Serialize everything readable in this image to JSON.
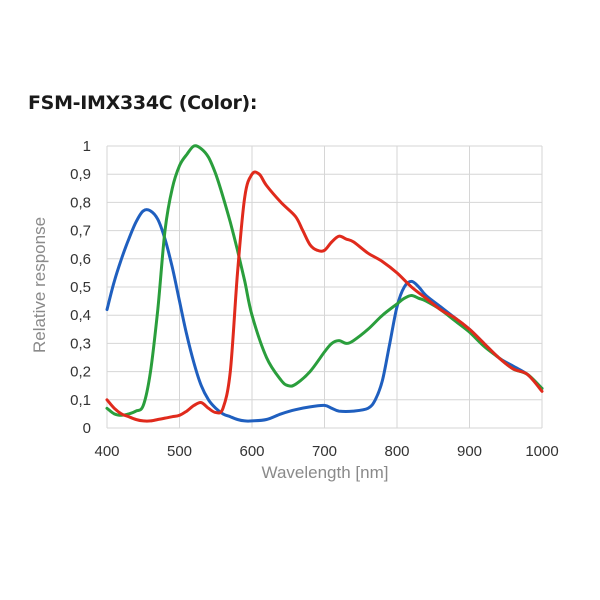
{
  "chart_data": {
    "type": "line",
    "title": "FSM-IMX334C (Color):",
    "xlabel": "Wavelength [nm]",
    "ylabel": "Relative response",
    "xlim": [
      400,
      1000
    ],
    "ylim": [
      0,
      1
    ],
    "x_ticks": [
      400,
      500,
      600,
      700,
      800,
      900,
      1000
    ],
    "x_tick_labels": [
      "400",
      "500",
      "600",
      "700",
      "800",
      "900",
      "1000"
    ],
    "y_ticks": [
      0,
      0.1,
      0.2,
      0.3,
      0.4,
      0.5,
      0.6,
      0.7,
      0.8,
      0.9,
      1
    ],
    "y_tick_labels": [
      "0",
      "0,1",
      "0,2",
      "0,3",
      "0,4",
      "0,5",
      "0,6",
      "0,7",
      "0,8",
      "0,9",
      "1"
    ],
    "grid": true,
    "series": [
      {
        "color": "#1f5fbf",
        "x": [
          400,
          410,
          420,
          430,
          440,
          450,
          460,
          470,
          480,
          490,
          500,
          510,
          520,
          530,
          540,
          550,
          560,
          570,
          580,
          590,
          600,
          620,
          640,
          660,
          680,
          700,
          710,
          720,
          740,
          760,
          770,
          780,
          790,
          800,
          810,
          820,
          830,
          840,
          860,
          880,
          900,
          920,
          940,
          960,
          980,
          1000
        ],
        "y": [
          0.42,
          0.52,
          0.6,
          0.67,
          0.73,
          0.77,
          0.77,
          0.74,
          0.67,
          0.57,
          0.45,
          0.33,
          0.23,
          0.15,
          0.1,
          0.07,
          0.05,
          0.04,
          0.03,
          0.025,
          0.025,
          0.03,
          0.05,
          0.065,
          0.075,
          0.08,
          0.07,
          0.06,
          0.06,
          0.07,
          0.1,
          0.17,
          0.3,
          0.43,
          0.5,
          0.52,
          0.5,
          0.47,
          0.43,
          0.39,
          0.35,
          0.3,
          0.25,
          0.22,
          0.19,
          0.14
        ]
      },
      {
        "color": "#2a9e3c",
        "x": [
          400,
          410,
          420,
          430,
          440,
          450,
          460,
          470,
          480,
          490,
          500,
          510,
          520,
          530,
          540,
          550,
          560,
          570,
          580,
          590,
          600,
          620,
          640,
          650,
          660,
          680,
          700,
          710,
          720,
          730,
          740,
          760,
          780,
          800,
          810,
          820,
          830,
          840,
          860,
          880,
          900,
          920,
          940,
          960,
          980,
          1000
        ],
        "y": [
          0.07,
          0.05,
          0.045,
          0.05,
          0.06,
          0.08,
          0.2,
          0.42,
          0.7,
          0.85,
          0.93,
          0.97,
          1.0,
          0.99,
          0.96,
          0.9,
          0.82,
          0.73,
          0.63,
          0.52,
          0.4,
          0.25,
          0.17,
          0.15,
          0.155,
          0.2,
          0.27,
          0.3,
          0.31,
          0.3,
          0.31,
          0.35,
          0.4,
          0.44,
          0.46,
          0.47,
          0.46,
          0.45,
          0.42,
          0.38,
          0.34,
          0.29,
          0.25,
          0.21,
          0.19,
          0.14
        ]
      },
      {
        "color": "#e02a1c",
        "x": [
          400,
          410,
          420,
          430,
          440,
          450,
          460,
          470,
          480,
          490,
          500,
          510,
          520,
          530,
          540,
          550,
          560,
          570,
          580,
          590,
          600,
          610,
          620,
          640,
          660,
          670,
          680,
          690,
          700,
          710,
          720,
          730,
          740,
          760,
          780,
          800,
          820,
          840,
          860,
          880,
          900,
          920,
          940,
          960,
          980,
          1000
        ],
        "y": [
          0.1,
          0.07,
          0.05,
          0.04,
          0.03,
          0.025,
          0.025,
          0.03,
          0.035,
          0.04,
          0.045,
          0.06,
          0.08,
          0.09,
          0.07,
          0.055,
          0.07,
          0.2,
          0.55,
          0.82,
          0.9,
          0.9,
          0.86,
          0.8,
          0.75,
          0.7,
          0.65,
          0.63,
          0.63,
          0.66,
          0.68,
          0.67,
          0.66,
          0.62,
          0.59,
          0.55,
          0.5,
          0.46,
          0.42,
          0.39,
          0.35,
          0.3,
          0.25,
          0.21,
          0.19,
          0.13
        ]
      }
    ]
  }
}
